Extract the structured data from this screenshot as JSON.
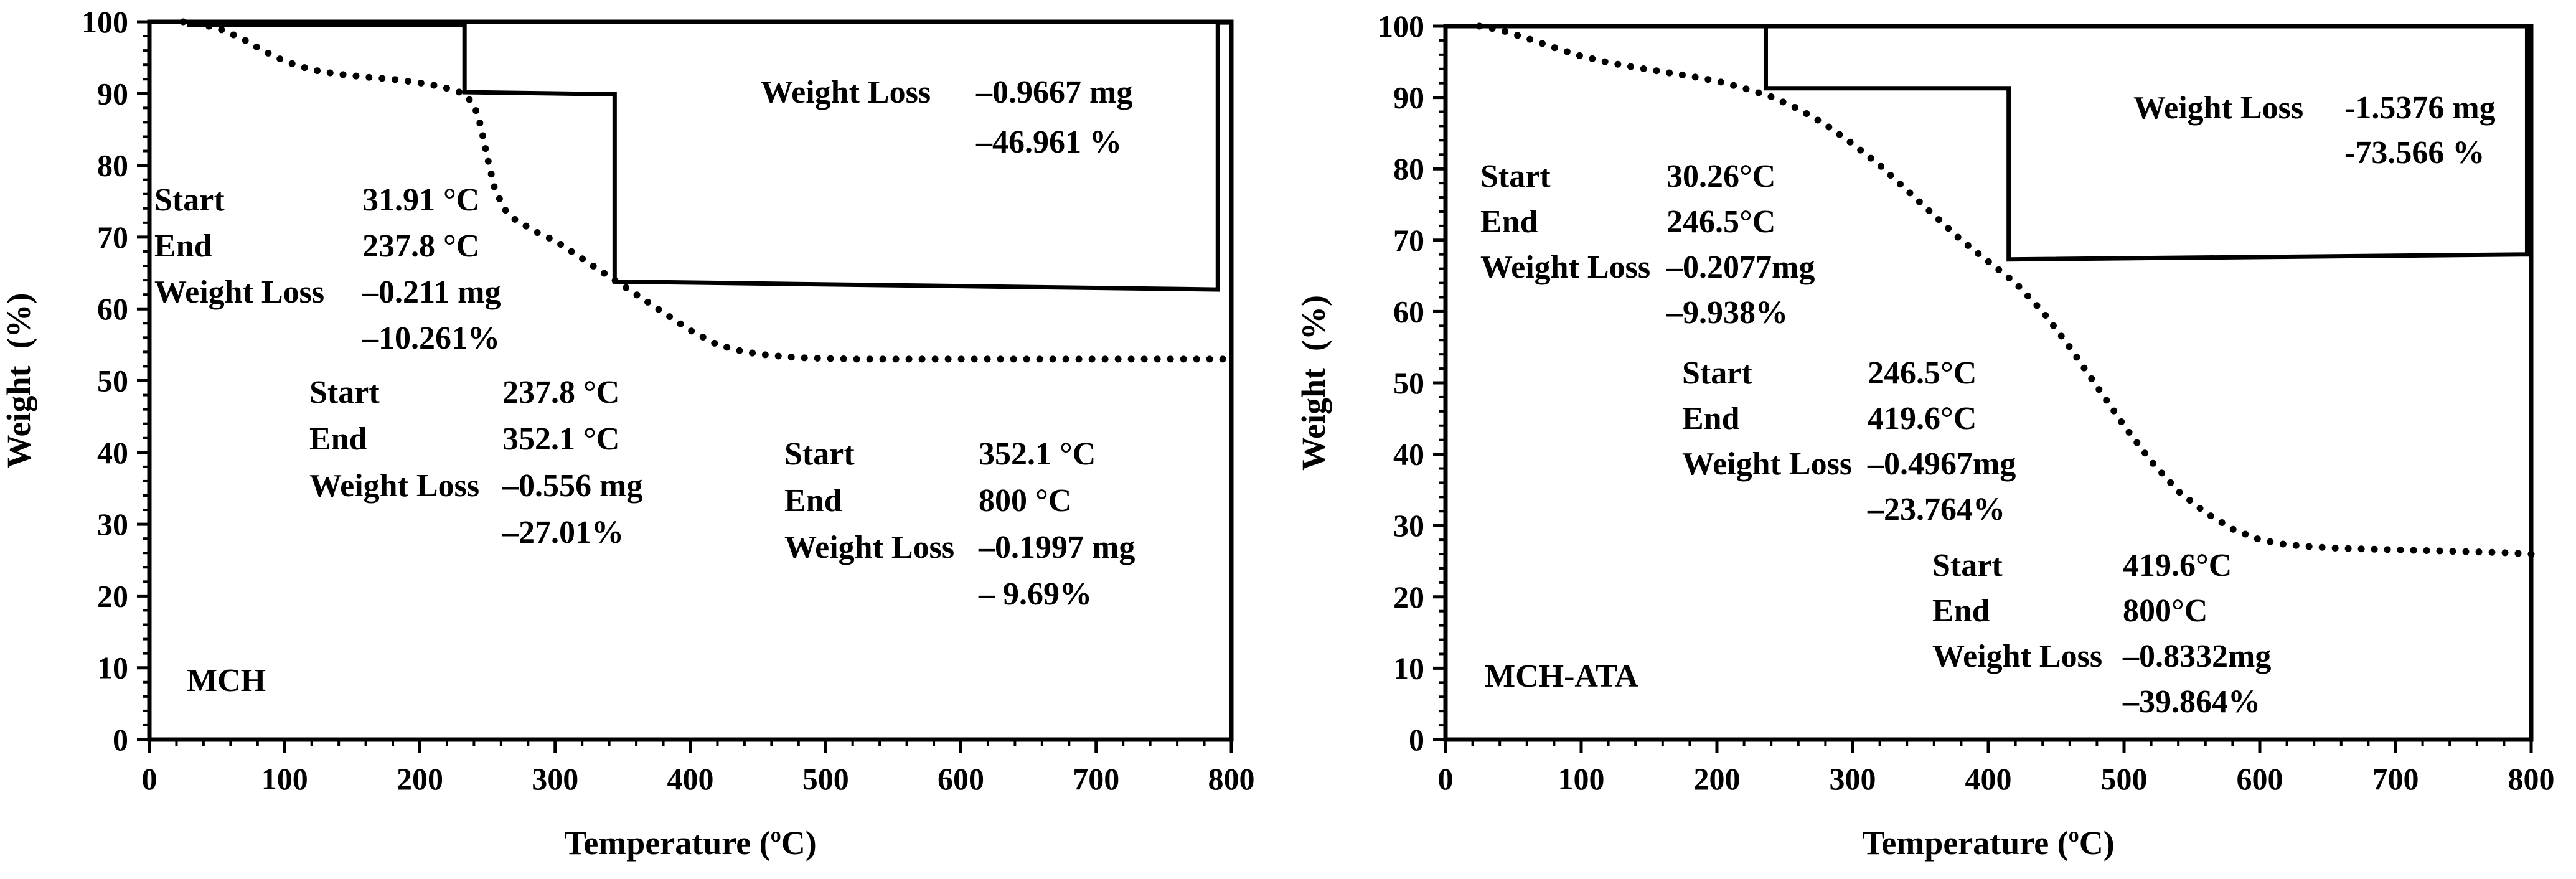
{
  "chart_data": [
    {
      "type": "line",
      "panel": "left",
      "sample_label": "MCH",
      "xlabel": "Temperature (°C)",
      "xlabel_parts": {
        "pre": "Temperature (",
        "sup": "o",
        "post": "C)"
      },
      "ylabel": "Weight  (%)",
      "xlim": [
        0,
        800
      ],
      "ylim": [
        0,
        100
      ],
      "x_ticks": [
        "0",
        "100",
        "200",
        "300",
        "400",
        "500",
        "600",
        "700",
        "800"
      ],
      "y_ticks": [
        "0",
        "10",
        "20",
        "30",
        "40",
        "50",
        "60",
        "70",
        "80",
        "90",
        "100"
      ],
      "series": [
        {
          "name": "TGA weight (dotted)",
          "style": "dotted",
          "x": [
            25,
            40,
            55,
            70,
            85,
            100,
            120,
            140,
            160,
            180,
            200,
            215,
            225,
            232,
            240,
            245,
            250,
            255,
            262,
            270,
            285,
            300,
            320,
            340,
            360,
            380,
            400,
            420,
            440,
            460,
            480,
            520,
            560,
            600,
            650,
            700,
            760,
            800
          ],
          "y": [
            100,
            99.6,
            98.8,
            97.5,
            95.9,
            94.5,
            93.3,
            92.7,
            92.3,
            92.0,
            91.5,
            91.0,
            90.5,
            90.0,
            88.5,
            85.5,
            81.0,
            77.0,
            74.0,
            72.5,
            70.8,
            69.5,
            67.0,
            64.5,
            62.0,
            59.5,
            57.0,
            55.0,
            54.0,
            53.5,
            53.2,
            53.0,
            53.0,
            53.0,
            53.0,
            53.0,
            53.0,
            53.0
          ]
        },
        {
          "name": "Step analysis (solid)",
          "style": "solid",
          "x": [
            28,
            233,
            233,
            344,
            344,
            790,
            790,
            800,
            800
          ],
          "y": [
            99.6,
            99.6,
            90.2,
            89.9,
            63.8,
            62.7,
            99.9,
            99.9,
            53.3
          ]
        }
      ],
      "annotations": [
        {
          "lines": [
            {
              "label": "Weight Loss",
              "value": "–0.9667 mg"
            },
            {
              "label": "",
              "value": "–46.961 %"
            }
          ]
        },
        {
          "lines": [
            {
              "label": "Start",
              "value": "31.91 °C"
            },
            {
              "label": "End",
              "value": "237.8 °C"
            },
            {
              "label": "Weight Loss",
              "value": "–0.211 mg"
            },
            {
              "label": "",
              "value": "–10.261%"
            }
          ]
        },
        {
          "lines": [
            {
              "label": "Start",
              "value": "237.8 °C"
            },
            {
              "label": "End",
              "value": "352.1 °C"
            },
            {
              "label": "Weight Loss",
              "value": "–0.556 mg"
            },
            {
              "label": "",
              "value": "–27.01%"
            }
          ]
        },
        {
          "lines": [
            {
              "label": "Start",
              "value": "352.1 °C"
            },
            {
              "label": "End",
              "value": "800 °C"
            },
            {
              "label": "Weight Loss",
              "value": "–0.1997 mg"
            },
            {
              "label": "",
              "value": "– 9.69%"
            }
          ]
        }
      ]
    },
    {
      "type": "line",
      "panel": "right",
      "sample_label": "MCH-ATA",
      "xlabel": "Temperature (°C)",
      "xlabel_parts": {
        "pre": "Temperature (",
        "sup": "o",
        "post": "C)"
      },
      "ylabel": "Weight  (%)",
      "xlim": [
        0,
        800
      ],
      "ylim": [
        0,
        100
      ],
      "x_ticks": [
        "0",
        "100",
        "200",
        "300",
        "400",
        "500",
        "600",
        "700",
        "800"
      ],
      "y_ticks": [
        "0",
        "10",
        "20",
        "30",
        "40",
        "50",
        "60",
        "70",
        "80",
        "90",
        "100"
      ],
      "series": [
        {
          "name": "TGA weight (dotted)",
          "style": "dotted",
          "x": [
            25,
            40,
            60,
            80,
            100,
            120,
            140,
            160,
            180,
            200,
            220,
            240,
            260,
            280,
            300,
            320,
            340,
            360,
            380,
            400,
            420,
            440,
            460,
            480,
            500,
            520,
            540,
            560,
            580,
            600,
            620,
            640,
            660,
            700,
            740,
            780,
            800
          ],
          "y": [
            100,
            99.5,
            98.3,
            97.0,
            95.8,
            94.9,
            94.2,
            93.6,
            93.0,
            92.3,
            91.3,
            90.1,
            88.4,
            86.2,
            83.5,
            80.5,
            77.0,
            73.5,
            70.0,
            67.0,
            64.0,
            60.0,
            55.0,
            49.5,
            44.0,
            39.0,
            34.8,
            31.8,
            29.5,
            28.0,
            27.3,
            27.0,
            26.8,
            26.6,
            26.4,
            26.2,
            26.0
          ]
        },
        {
          "name": "Step analysis (solid)",
          "style": "solid",
          "x": [
            28,
            236,
            236,
            415,
            415,
            797,
            797,
            800,
            800
          ],
          "y": [
            100,
            100,
            91.3,
            91.3,
            67.3,
            68.0,
            100,
            100,
            25.5
          ]
        }
      ],
      "annotations": [
        {
          "lines": [
            {
              "label": "Weight Loss",
              "value": "-1.5376 mg"
            },
            {
              "label": "",
              "value": "-73.566 %"
            }
          ]
        },
        {
          "lines": [
            {
              "label": "Start",
              "value": "30.26°C"
            },
            {
              "label": "End",
              "value": "246.5°C"
            },
            {
              "label": "Weight Loss",
              "value": "–0.2077mg"
            },
            {
              "label": "",
              "value": "–9.938%"
            }
          ]
        },
        {
          "lines": [
            {
              "label": "Start",
              "value": "246.5°C"
            },
            {
              "label": "End",
              "value": "419.6°C"
            },
            {
              "label": "Weight Loss",
              "value": "–0.4967mg"
            },
            {
              "label": "",
              "value": "–23.764%"
            }
          ]
        },
        {
          "lines": [
            {
              "label": "Start",
              "value": "419.6°C"
            },
            {
              "label": "End",
              "value": "800°C"
            },
            {
              "label": "Weight Loss",
              "value": "–0.8332mg"
            },
            {
              "label": "",
              "value": "–39.864%"
            }
          ]
        }
      ]
    }
  ]
}
